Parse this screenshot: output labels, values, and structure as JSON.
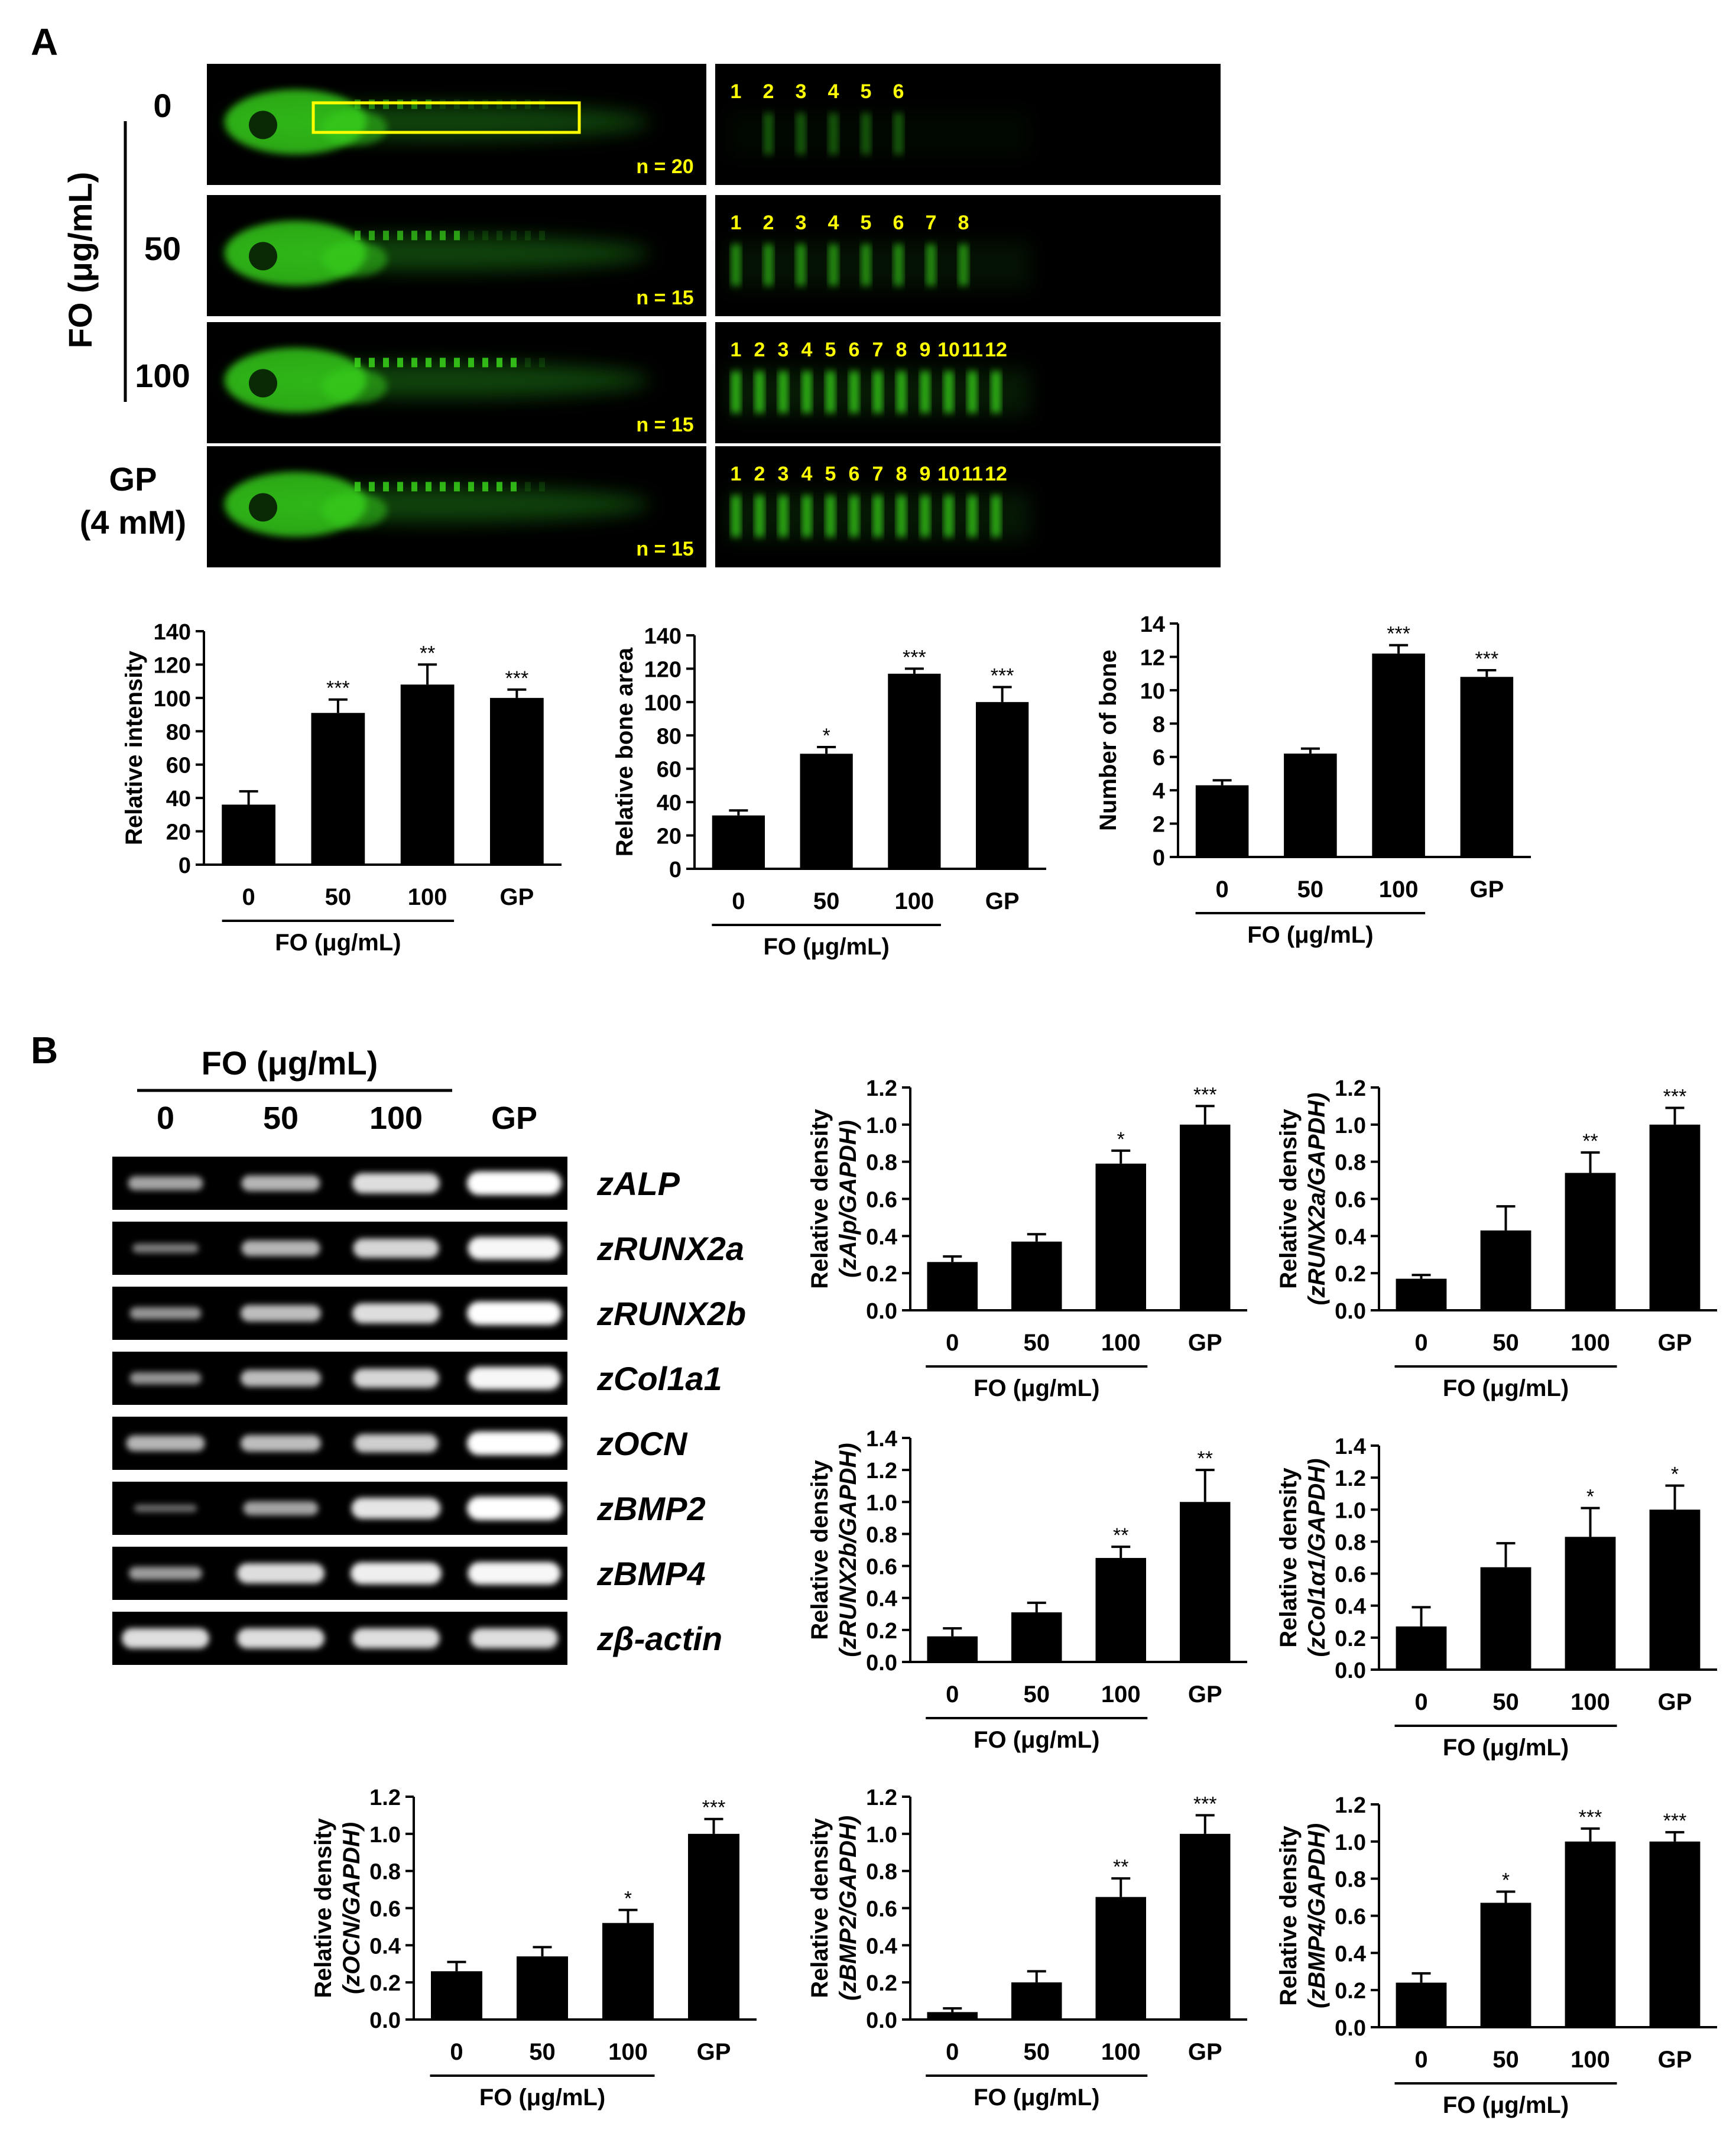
{
  "panels": {
    "a": "A",
    "b": "B"
  },
  "colors": {
    "fluor": "#39d41a",
    "fluor_dim": "#1f7a12",
    "number_label": "#ffff00",
    "box": "#ffff00",
    "bar": "#000000"
  },
  "imaging": {
    "group_axis_label": "FO (μg/mL)",
    "rows": [
      {
        "label": "0",
        "n": "n = 20",
        "bone_numbers": [
          "1",
          "2",
          "3",
          "4",
          "5",
          "6"
        ],
        "brightness": 0.25,
        "box": true
      },
      {
        "label": "50",
        "n": "n = 15",
        "bone_numbers": [
          "1",
          "2",
          "3",
          "4",
          "5",
          "6",
          "7",
          "8"
        ],
        "brightness": 0.6,
        "box": false
      },
      {
        "label": "100",
        "n": "n = 15",
        "bone_numbers": [
          "1",
          "2",
          "3",
          "4",
          "5",
          "6",
          "7",
          "8",
          "9",
          "10",
          "11",
          "12"
        ],
        "brightness": 0.85,
        "box": false
      },
      {
        "label": "GP\n(4 mM)",
        "n": "n = 15",
        "bone_numbers": [
          "1",
          "2",
          "3",
          "4",
          "5",
          "6",
          "7",
          "8",
          "9",
          "10",
          "11",
          "12"
        ],
        "brightness": 0.8,
        "box": false
      }
    ]
  },
  "gel": {
    "header": "FO (μg/mL)",
    "lanes": [
      "0",
      "50",
      "100",
      "GP"
    ],
    "genes": [
      {
        "name": "zALP",
        "intensity": [
          0.45,
          0.55,
          0.8,
          1.0
        ]
      },
      {
        "name": "zRUNX2a",
        "intensity": [
          0.2,
          0.55,
          0.75,
          0.95
        ]
      },
      {
        "name": "zRUNX2b",
        "intensity": [
          0.35,
          0.6,
          0.8,
          1.0
        ]
      },
      {
        "name": "zCol1a1",
        "intensity": [
          0.35,
          0.6,
          0.75,
          0.95
        ]
      },
      {
        "name": "zOCN",
        "intensity": [
          0.55,
          0.6,
          0.7,
          1.0
        ]
      },
      {
        "name": "zBMP2",
        "intensity": [
          0.1,
          0.45,
          0.85,
          1.0
        ]
      },
      {
        "name": "zBMP4",
        "intensity": [
          0.4,
          0.8,
          0.9,
          0.95
        ]
      },
      {
        "name": "zβ-actin",
        "intensity": [
          0.8,
          0.8,
          0.8,
          0.8
        ]
      }
    ]
  },
  "chart_data": [
    {
      "type": "bar",
      "id": "intensity",
      "categories": [
        "0",
        "50",
        "100",
        "GP"
      ],
      "group_label": "FO (μg/mL)",
      "ylabel": [
        "Relative intensity"
      ],
      "ylim": [
        0,
        140
      ],
      "yticks": [
        "0",
        "20",
        "40",
        "60",
        "80",
        "100",
        "120",
        "140"
      ],
      "values": [
        36,
        91,
        108,
        100
      ],
      "errors": [
        8,
        8,
        12,
        5
      ],
      "significance": [
        "",
        "***",
        "**",
        "***"
      ]
    },
    {
      "type": "bar",
      "id": "bone_area",
      "categories": [
        "0",
        "50",
        "100",
        "GP"
      ],
      "group_label": "FO (μg/mL)",
      "ylabel": [
        "Relative bone area"
      ],
      "ylim": [
        0,
        140
      ],
      "yticks": [
        "0",
        "20",
        "40",
        "60",
        "80",
        "100",
        "120",
        "140"
      ],
      "values": [
        32,
        69,
        117,
        100
      ],
      "errors": [
        3,
        4,
        3,
        9
      ],
      "significance": [
        "",
        "*",
        "***",
        "***"
      ]
    },
    {
      "type": "bar",
      "id": "bone_number",
      "categories": [
        "0",
        "50",
        "100",
        "GP"
      ],
      "group_label": "FO (μg/mL)",
      "ylabel": [
        "Number of bone"
      ],
      "ylim": [
        0,
        14
      ],
      "yticks": [
        "0",
        "2",
        "4",
        "6",
        "8",
        "10",
        "12",
        "14"
      ],
      "values": [
        4.3,
        6.2,
        12.2,
        10.8
      ],
      "errors": [
        0.3,
        0.3,
        0.5,
        0.4
      ],
      "significance": [
        "",
        "",
        "***",
        "***"
      ]
    },
    {
      "type": "bar",
      "id": "zALP",
      "categories": [
        "0",
        "50",
        "100",
        "GP"
      ],
      "group_label": "FO (μg/mL)",
      "ylabel": [
        "Relative density",
        "(zAlp/GAPDH)"
      ],
      "ylim": [
        0,
        1.2
      ],
      "yticks": [
        "0.0",
        "0.2",
        "0.4",
        "0.6",
        "0.8",
        "1.0",
        "1.2"
      ],
      "values": [
        0.26,
        0.37,
        0.79,
        1.0
      ],
      "errors": [
        0.03,
        0.04,
        0.07,
        0.1
      ],
      "significance": [
        "",
        "",
        "*",
        "***"
      ]
    },
    {
      "type": "bar",
      "id": "zRUNX2a",
      "categories": [
        "0",
        "50",
        "100",
        "GP"
      ],
      "group_label": "FO (μg/mL)",
      "ylabel": [
        "Relative density",
        "(zRUNX2a/GAPDH)"
      ],
      "ylim": [
        0,
        1.2
      ],
      "yticks": [
        "0.0",
        "0.2",
        "0.4",
        "0.6",
        "0.8",
        "1.0",
        "1.2"
      ],
      "values": [
        0.17,
        0.43,
        0.74,
        1.0
      ],
      "errors": [
        0.02,
        0.13,
        0.11,
        0.09
      ],
      "significance": [
        "",
        "",
        "**",
        "***"
      ]
    },
    {
      "type": "bar",
      "id": "zRUNX2b",
      "categories": [
        "0",
        "50",
        "100",
        "GP"
      ],
      "group_label": "FO (μg/mL)",
      "ylabel": [
        "Relative density",
        "(zRUNX2b/GAPDH)"
      ],
      "ylim": [
        0,
        1.4
      ],
      "yticks": [
        "0.0",
        "0.2",
        "0.4",
        "0.6",
        "0.8",
        "1.0",
        "1.2",
        "1.4"
      ],
      "values": [
        0.16,
        0.31,
        0.65,
        1.0
      ],
      "errors": [
        0.05,
        0.06,
        0.07,
        0.2
      ],
      "significance": [
        "",
        "",
        "**",
        "**"
      ]
    },
    {
      "type": "bar",
      "id": "zCol1a1",
      "categories": [
        "0",
        "50",
        "100",
        "GP"
      ],
      "group_label": "FO (μg/mL)",
      "ylabel": [
        "Relative density",
        "(zCol1α1/GAPDH)"
      ],
      "ylim": [
        0,
        1.4
      ],
      "yticks": [
        "0.0",
        "0.2",
        "0.4",
        "0.6",
        "0.8",
        "1.0",
        "1.2",
        "1.4"
      ],
      "values": [
        0.27,
        0.64,
        0.83,
        1.0
      ],
      "errors": [
        0.12,
        0.15,
        0.18,
        0.15
      ],
      "significance": [
        "",
        "",
        "*",
        "*"
      ]
    },
    {
      "type": "bar",
      "id": "zOCN",
      "categories": [
        "0",
        "50",
        "100",
        "GP"
      ],
      "group_label": "FO (μg/mL)",
      "ylabel": [
        "Relative density",
        "(zOCN/GAPDH)"
      ],
      "ylim": [
        0,
        1.2
      ],
      "yticks": [
        "0.0",
        "0.2",
        "0.4",
        "0.6",
        "0.8",
        "1.0",
        "1.2"
      ],
      "values": [
        0.26,
        0.34,
        0.52,
        1.0
      ],
      "errors": [
        0.05,
        0.05,
        0.07,
        0.08
      ],
      "significance": [
        "",
        "",
        "*",
        "***"
      ]
    },
    {
      "type": "bar",
      "id": "zBMP2",
      "categories": [
        "0",
        "50",
        "100",
        "GP"
      ],
      "group_label": "FO (μg/mL)",
      "ylabel": [
        "Relative density",
        "(zBMP2/GAPDH)"
      ],
      "ylim": [
        0,
        1.2
      ],
      "yticks": [
        "0.0",
        "0.2",
        "0.4",
        "0.6",
        "0.8",
        "1.0",
        "1.2"
      ],
      "values": [
        0.04,
        0.2,
        0.66,
        1.0
      ],
      "errors": [
        0.02,
        0.06,
        0.1,
        0.1
      ],
      "significance": [
        "",
        "",
        "**",
        "***"
      ]
    },
    {
      "type": "bar",
      "id": "zBMP4",
      "categories": [
        "0",
        "50",
        "100",
        "GP"
      ],
      "group_label": "FO (μg/mL)",
      "ylabel": [
        "Relative density",
        "(zBMP4/GAPDH)"
      ],
      "ylim": [
        0,
        1.2
      ],
      "yticks": [
        "0.0",
        "0.2",
        "0.4",
        "0.6",
        "0.8",
        "1.0",
        "1.2"
      ],
      "values": [
        0.24,
        0.67,
        1.0,
        1.0
      ],
      "errors": [
        0.05,
        0.06,
        0.07,
        0.05
      ],
      "significance": [
        "",
        "*",
        "***",
        "***"
      ]
    }
  ]
}
